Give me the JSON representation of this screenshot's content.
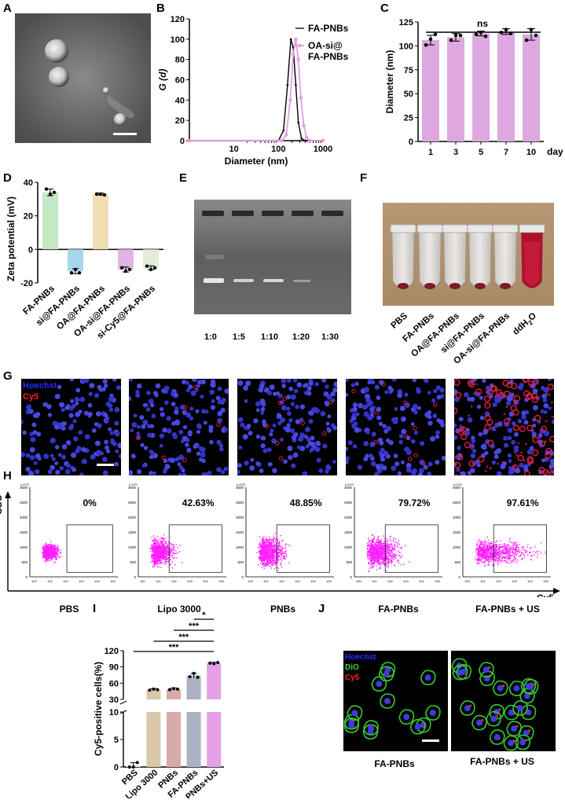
{
  "panels": {
    "A": "A",
    "B": "B",
    "C": "C",
    "D": "D",
    "E": "E",
    "F": "F",
    "G": "G",
    "H": "H",
    "I": "I",
    "J": "J"
  },
  "chart_data": [
    {
      "panel": "B",
      "type": "line",
      "xlabel": "Diameter (nm)",
      "ylabel": "G (d)",
      "xscale": "log",
      "xlim": [
        1,
        1000
      ],
      "ylim": [
        0,
        120
      ],
      "xticks": [
        "10",
        "100",
        "1000"
      ],
      "yticks": [
        "0",
        "20",
        "40",
        "60",
        "80",
        "100",
        "120"
      ],
      "legend_placement": "top-right",
      "series": [
        {
          "name": "FA-PNBs",
          "color": "#000000",
          "x": [
            1,
            100,
            130,
            160,
            190,
            215,
            245,
            280,
            330,
            400,
            1000
          ],
          "y": [
            0,
            0,
            10,
            55,
            100,
            92,
            55,
            18,
            2,
            0,
            0
          ]
        },
        {
          "name": "OA-si@\nFA-PNBs",
          "color": "#e39ee4",
          "x": [
            1,
            120,
            150,
            185,
            215,
            245,
            280,
            320,
            370,
            430,
            500,
            1000
          ],
          "y": [
            0,
            0,
            6,
            40,
            85,
            100,
            80,
            42,
            15,
            3,
            0,
            0
          ]
        }
      ]
    },
    {
      "panel": "C",
      "type": "bar",
      "xlabel": "day",
      "ylabel": "Diameter (nm)",
      "ylim": [
        0,
        125
      ],
      "yticks": [
        "0",
        "25",
        "50",
        "75",
        "100",
        "125"
      ],
      "categories": [
        "1",
        "3",
        "5",
        "7",
        "10"
      ],
      "values": [
        106,
        109,
        113,
        115,
        112
      ],
      "errors": [
        5,
        4,
        2.5,
        3,
        6
      ],
      "points": [
        [
          101,
          107,
          112
        ],
        [
          106,
          111,
          111
        ],
        [
          112,
          114,
          110
        ],
        [
          114,
          117,
          113
        ],
        [
          106,
          117,
          111
        ]
      ],
      "bar_color": "#dda8df",
      "annotation": "ns"
    },
    {
      "panel": "D",
      "type": "bar",
      "ylabel": "Zeta potential (mV)",
      "ylim": [
        -20,
        40
      ],
      "yticks": [
        "40",
        "20",
        "0",
        "-20"
      ],
      "categories": [
        "FA-PNBs",
        "si@FA-PNBs",
        "OA@FA-PNBs",
        "OA-si@FA-PNBs",
        "si-Cy5@FA-PNBs"
      ],
      "values": [
        34,
        -13,
        33,
        -12,
        -11
      ],
      "errors": [
        2,
        1.5,
        0.6,
        1.5,
        1.2
      ],
      "points": [
        [
          36,
          33,
          34
        ],
        [
          -14,
          -12,
          -14
        ],
        [
          33,
          33,
          32.5
        ],
        [
          -11,
          -13,
          -12
        ],
        [
          -10,
          -12,
          -11
        ]
      ],
      "colors": [
        "#c3e8c6",
        "#a7d7ec",
        "#f0dfb3",
        "#ddb6e2",
        "#e3ecd4"
      ]
    },
    {
      "panel": "I",
      "type": "bar",
      "ylabel": "Cy5-positive cells(%)",
      "ylim_lower": [
        0,
        10
      ],
      "ylim_upper": [
        30,
        120
      ],
      "yticks_lower": [
        "0",
        "5",
        "10"
      ],
      "yticks_upper": [
        "30",
        "60",
        "90",
        "120"
      ],
      "categories": [
        "PBS",
        "Lipo 3000",
        "PNBs",
        "FA-PNBs",
        "FA-PNBs+US"
      ],
      "values": [
        0.2,
        48,
        49,
        74,
        97
      ],
      "errors": [
        0.6,
        2,
        2,
        4,
        1.5
      ],
      "points": [
        [
          0,
          0,
          0.8
        ],
        [
          47,
          49,
          48
        ],
        [
          48,
          50,
          49
        ],
        [
          72,
          78,
          71
        ],
        [
          97,
          96,
          98
        ]
      ],
      "colors": [
        "#f5e9e4",
        "#d8c7a8",
        "#d7a9a9",
        "#a9b1c2",
        "#e6a0e6"
      ],
      "significance": [
        "*",
        "***",
        "***",
        "***"
      ]
    }
  ],
  "E": {
    "lanes": [
      "1:0",
      "1:5",
      "1:10",
      "1:20",
      "1:30"
    ]
  },
  "F": {
    "tubes": [
      "PBS",
      "FA-PNBs",
      "OA@FA-PNBs",
      "si@FA-PNBs",
      "OA-si@FA-PNBs",
      "ddH2O"
    ]
  },
  "G": {
    "stain1": "Hoechst",
    "stain2": "Cy5",
    "stain1_color": "#2a2aff",
    "stain2_color": "#ff2020"
  },
  "H": {
    "y_axis": "SSC",
    "x_axis": "Cy5",
    "tick_y": [
      "3000",
      "2500",
      "2000",
      "1500",
      "1000",
      "500",
      "0"
    ],
    "tick_y_unit": "(×10³)",
    "groups": [
      {
        "label": "PBS",
        "percent": "0%"
      },
      {
        "label": "Lipo 3000",
        "percent": "42.63%"
      },
      {
        "label": "PNBs",
        "percent": "48.85%"
      },
      {
        "label": "FA-PNBs",
        "percent": "79.72%"
      },
      {
        "label": "FA-PNBs + US",
        "percent": "97.61%"
      }
    ]
  },
  "J": {
    "stain1": "Hoechst",
    "stain2": "DiO",
    "stain3": "Cy5",
    "captions": [
      "FA-PNBs",
      "FA-PNBs + US"
    ]
  },
  "legend_B": [
    "FA-PNBs",
    "OA-si@",
    "FA-PNBs"
  ],
  "colors": {
    "pink": "#e39ee4",
    "dot_magenta": "#ff33ff",
    "bar_pink": "#dda8df"
  }
}
